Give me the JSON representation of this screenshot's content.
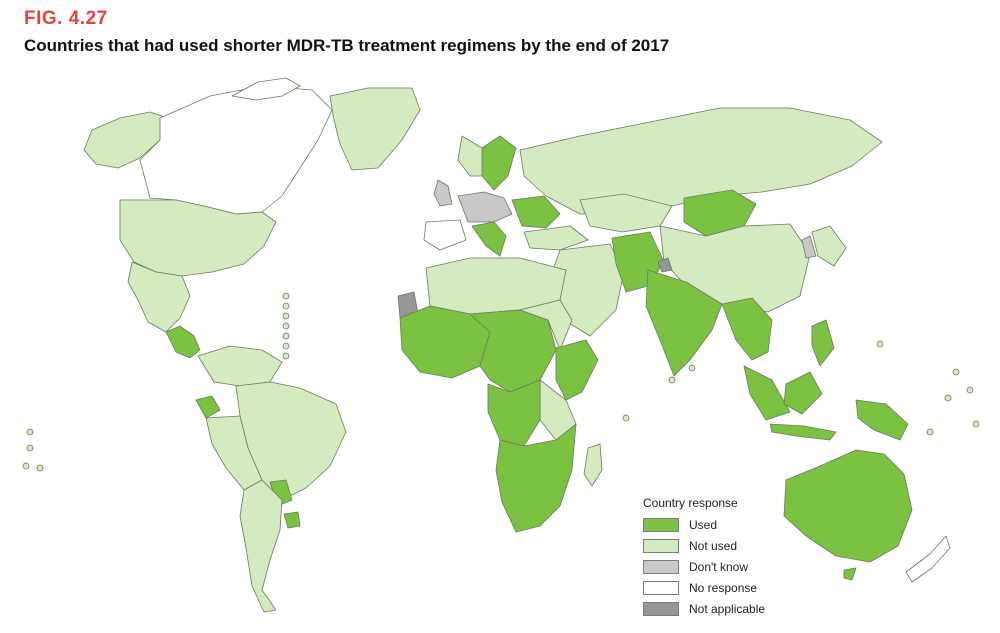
{
  "figure": {
    "label": "FIG. 4.27",
    "title": "Countries that had used shorter MDR-TB treatment regimens by the end of 2017"
  },
  "legend": {
    "title": "Country response",
    "items": [
      {
        "label": "Used",
        "color": "#7cc242"
      },
      {
        "label": "Not used",
        "color": "#d4eac0"
      },
      {
        "label": "Don't know",
        "color": "#c8c8c8"
      },
      {
        "label": "No response",
        "color": "#ffffff"
      },
      {
        "label": "Not applicable",
        "color": "#969696"
      }
    ]
  },
  "colors": {
    "border": "#6b7a5c",
    "label_accent": "#e8413a"
  }
}
